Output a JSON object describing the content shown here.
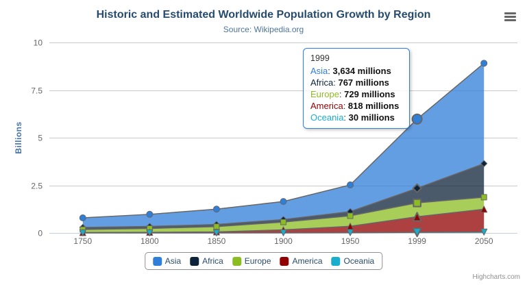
{
  "header": {
    "title": "Historic and Estimated Worldwide Population Growth by Region",
    "subtitle": "Source: Wikipedia.org"
  },
  "icons": {
    "menu": "hamburger-icon"
  },
  "chart_data": {
    "type": "area",
    "stacking": "normal",
    "title": "Historic and Estimated Worldwide Population Growth by Region",
    "subtitle": "Source: Wikipedia.org",
    "xlabel": "",
    "ylabel": "Billions",
    "ylim": [
      0,
      10
    ],
    "yticks": [
      0,
      2.5,
      5,
      7.5,
      10
    ],
    "ytick_labels": [
      "0",
      "2.5",
      "5",
      "7.5",
      "10"
    ],
    "unit": "millions",
    "categories": [
      "1750",
      "1800",
      "1850",
      "1900",
      "1950",
      "1999",
      "2050"
    ],
    "series": [
      {
        "name": "Asia",
        "color": "#2f7ed8",
        "marker": "circle",
        "values": [
          502,
          635,
          809,
          947,
          1402,
          3634,
          5268
        ]
      },
      {
        "name": "Africa",
        "color": "#0d233a",
        "marker": "diamond",
        "values": [
          106,
          107,
          111,
          133,
          221,
          767,
          1766
        ]
      },
      {
        "name": "Europe",
        "color": "#8bbc21",
        "marker": "square",
        "values": [
          163,
          203,
          276,
          408,
          547,
          729,
          628
        ]
      },
      {
        "name": "America",
        "color": "#910000",
        "marker": "triangle-up",
        "values": [
          18,
          31,
          54,
          156,
          339,
          818,
          1201
        ]
      },
      {
        "name": "Oceania",
        "color": "#1aadce",
        "marker": "triangle-down",
        "values": [
          2,
          2,
          2,
          6,
          13,
          30,
          46
        ]
      }
    ],
    "stack_order_bottom_to_top": [
      "Oceania",
      "America",
      "Europe",
      "Africa",
      "Asia"
    ],
    "fill_opacity": 0.75,
    "grid": "horizontal",
    "legend_position": "bottom-center",
    "hover_category": "1999",
    "hover_category_index": 5
  },
  "tooltip": {
    "header": "1999",
    "rows": [
      {
        "name": "Asia",
        "value": "3,634 millions"
      },
      {
        "name": "Africa",
        "value": "767 millions"
      },
      {
        "name": "Europe",
        "value": "729 millions"
      },
      {
        "name": "America",
        "value": "818 millions"
      },
      {
        "name": "Oceania",
        "value": "30 millions"
      }
    ]
  },
  "legend": {
    "items": [
      "Asia",
      "Africa",
      "Europe",
      "America",
      "Oceania"
    ]
  },
  "footer": {
    "credit": "Highcharts.com"
  },
  "theme": {
    "background": "#ffffff",
    "title_color": "#274b6d",
    "subtitle_color": "#4d759e",
    "axis_label_color": "#666666",
    "y_axis_title_color": "#4572a7",
    "grid_color": "#c9c9c9",
    "x_axis_line_color": "#c0d0e0",
    "series_edge_color": "#666666",
    "tooltip_border_color": "#2f7ed8",
    "legend_text_color": "#274b6d",
    "legend_border_color": "#909090",
    "credit_color": "#909090",
    "menu_icon_color": "#666666"
  }
}
